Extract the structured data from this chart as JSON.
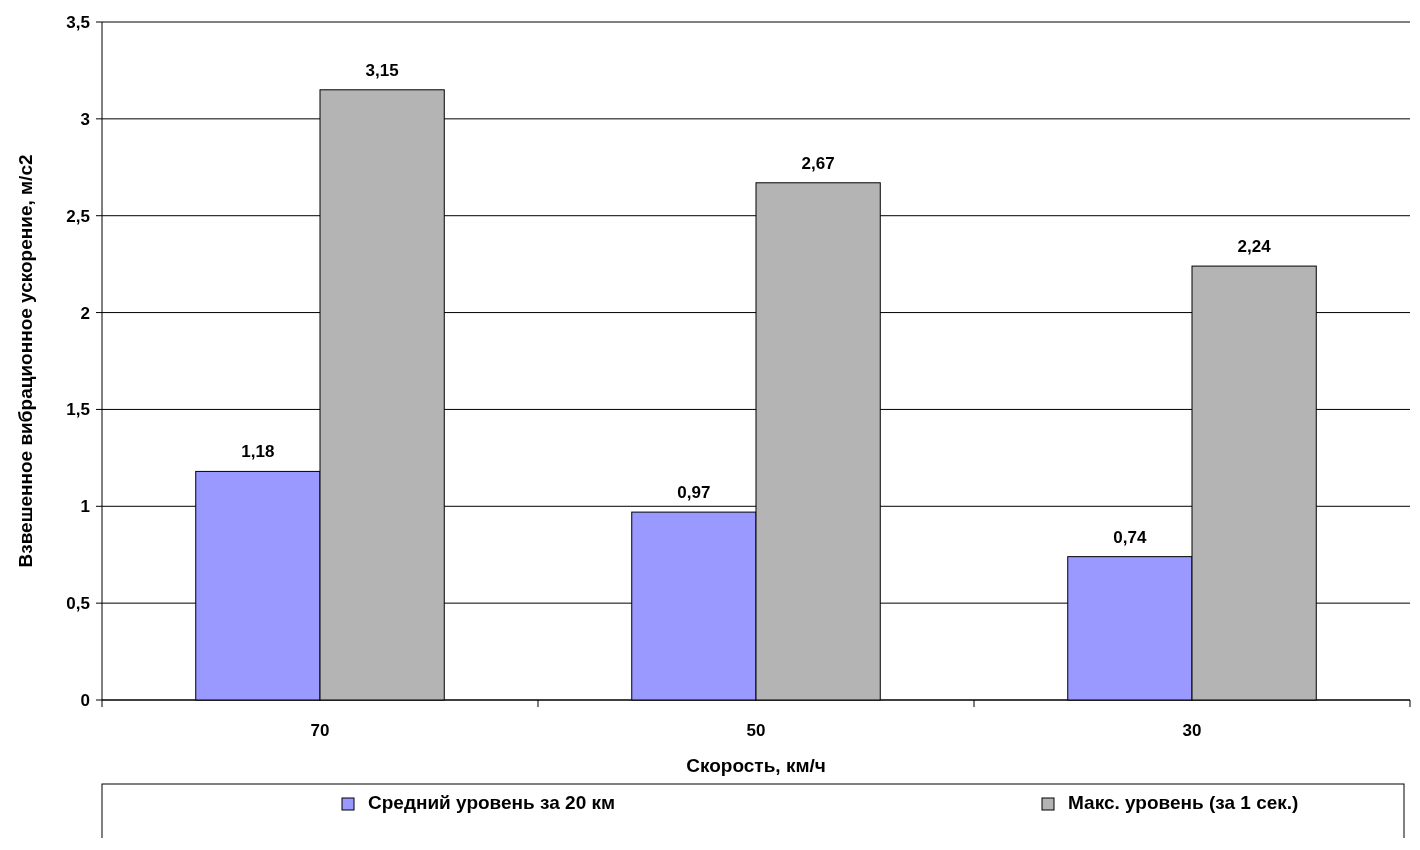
{
  "chart_data": {
    "type": "bar",
    "xlabel": "Скорость, км/ч",
    "ylabel": "Взвешенное вибрационное ускорение, м/с2",
    "categories": [
      "70",
      "50",
      "30"
    ],
    "series": [
      {
        "name": "Средний уровень за 20 км",
        "color": "#9999ff",
        "values": [
          1.18,
          0.97,
          0.74
        ],
        "value_labels": [
          "1,18",
          "0,97",
          "0,74"
        ]
      },
      {
        "name": "Макс. уровень (за 1 сек.)",
        "color": "#b4b4b4",
        "values": [
          3.15,
          2.67,
          2.24
        ],
        "value_labels": [
          "3,15",
          "2,67",
          "2,24"
        ]
      }
    ],
    "ylim": [
      0,
      3.5
    ],
    "yticks": [
      0,
      {
        "value": 0.5,
        "label": "0,5"
      },
      1,
      {
        "value": 1.5,
        "label": "1,5"
      },
      2,
      {
        "value": 2.5,
        "label": "2,5"
      },
      3,
      {
        "value": 3.5,
        "label": "3,5"
      }
    ],
    "grid": "y",
    "legend": "bottom"
  }
}
